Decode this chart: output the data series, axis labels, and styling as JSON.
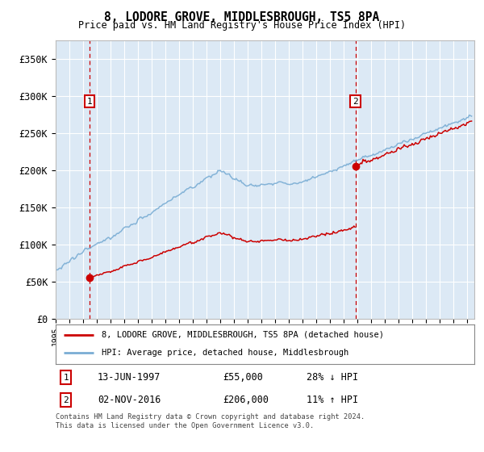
{
  "title": "8, LODORE GROVE, MIDDLESBROUGH, TS5 8PA",
  "subtitle": "Price paid vs. HM Land Registry's House Price Index (HPI)",
  "background_color": "#dce9f5",
  "plot_bg_color": "#dce9f5",
  "sale1_label": "13-JUN-1997",
  "sale1_price": 55000,
  "sale1_hpi_pct": "28% ↓ HPI",
  "sale2_label": "02-NOV-2016",
  "sale2_price": 206000,
  "sale2_hpi_pct": "11% ↑ HPI",
  "ylabel_ticks": [
    "£0",
    "£50K",
    "£100K",
    "£150K",
    "£200K",
    "£250K",
    "£300K",
    "£350K"
  ],
  "ylabel_values": [
    0,
    50000,
    100000,
    150000,
    200000,
    250000,
    300000,
    350000
  ],
  "ylim": [
    0,
    375000
  ],
  "xlim_start": 1995.0,
  "xlim_end": 2025.5,
  "legend_line1": "8, LODORE GROVE, MIDDLESBROUGH, TS5 8PA (detached house)",
  "legend_line2": "HPI: Average price, detached house, Middlesbrough",
  "footer": "Contains HM Land Registry data © Crown copyright and database right 2024.\nThis data is licensed under the Open Government Licence v3.0.",
  "sale_marker_color": "#cc0000",
  "hpi_line_color": "#7aadd4",
  "price_line_color": "#cc0000",
  "vline_color": "#cc0000",
  "sale1_num_label": "1",
  "sale2_num_label": "2",
  "box_color": "#cc0000",
  "t1": 1997.45,
  "t2": 2016.84
}
